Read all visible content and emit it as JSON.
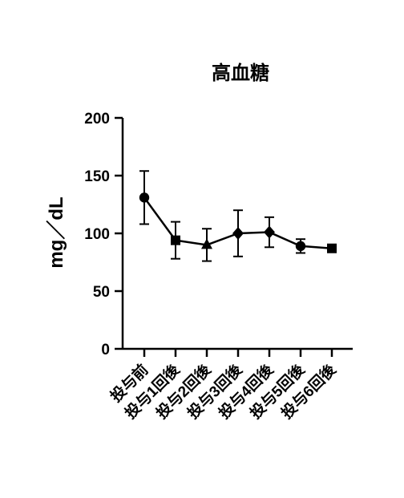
{
  "chart_data": {
    "type": "line",
    "title": "高血糖",
    "xlabel": "",
    "ylabel": "mg／dL",
    "ylim": [
      0,
      200
    ],
    "yticks": [
      "0",
      "50",
      "100",
      "150",
      "200"
    ],
    "ytick_values": [
      0,
      50,
      100,
      150,
      200
    ],
    "categories": [
      "投与前",
      "投与1回後",
      "投与2回後",
      "投与3回後",
      "投与4回後",
      "投与5回後",
      "投与6回後"
    ],
    "series": [
      {
        "name": "",
        "values": [
          131,
          94,
          90,
          100,
          101,
          89,
          87
        ],
        "error_bars": [
          23,
          16,
          14,
          20,
          13,
          6,
          0
        ],
        "markers": [
          "circle",
          "square",
          "triangle",
          "diamond",
          "diamond",
          "circle",
          "square"
        ]
      }
    ],
    "grid": false,
    "legend": "none"
  },
  "colors": {
    "line": "#000000",
    "marker": "#000000",
    "axis": "#000000",
    "background": "#ffffff"
  }
}
